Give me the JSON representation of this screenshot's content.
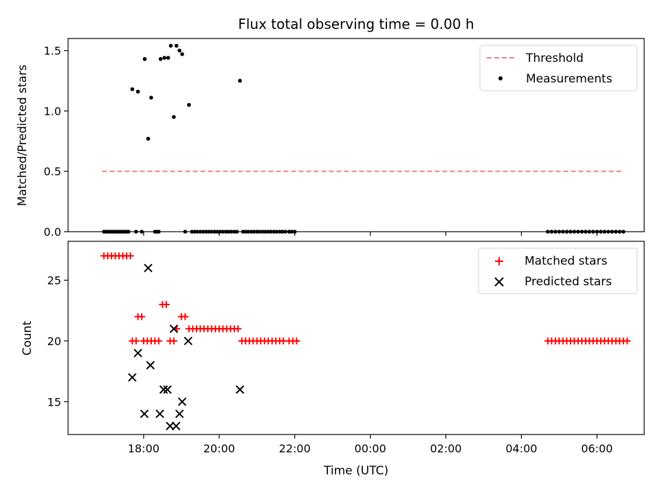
{
  "title": "Flux total observing time = 0.00 h",
  "chart_data": [
    {
      "type": "scatter",
      "panel": "top",
      "ylabel": "Matched/Predicted stars",
      "ylim": [
        0,
        1.6
      ],
      "yticks": [
        0.0,
        0.5,
        1.0,
        1.5
      ],
      "ytick_labels": [
        "0.0",
        "0.5",
        "1.0",
        "1.5"
      ],
      "legend_position": "top-right",
      "series": [
        {
          "name": "Threshold",
          "kind": "line",
          "style": "dashed",
          "color": "#f08080",
          "points": [
            [
              16.9,
              0.5
            ],
            [
              30.7,
              0.5
            ]
          ]
        },
        {
          "name": "Measurements",
          "kind": "scatter",
          "color": "#000000",
          "points": [
            [
              16.95,
              0
            ],
            [
              17.0,
              0
            ],
            [
              17.05,
              0
            ],
            [
              17.1,
              0
            ],
            [
              17.15,
              0
            ],
            [
              17.2,
              0
            ],
            [
              17.25,
              0
            ],
            [
              17.3,
              0
            ],
            [
              17.35,
              0
            ],
            [
              17.4,
              0
            ],
            [
              17.45,
              0
            ],
            [
              17.5,
              0
            ],
            [
              17.55,
              0
            ],
            [
              17.6,
              0
            ],
            [
              17.7,
              1.18
            ],
            [
              17.85,
              1.16
            ],
            [
              17.8,
              0
            ],
            [
              17.95,
              0
            ],
            [
              18.03,
              1.43
            ],
            [
              18.12,
              0.77
            ],
            [
              18.2,
              1.11
            ],
            [
              18.3,
              0
            ],
            [
              18.35,
              0
            ],
            [
              18.4,
              0
            ],
            [
              18.45,
              1.43
            ],
            [
              18.55,
              1.44
            ],
            [
              18.65,
              1.44
            ],
            [
              18.72,
              1.54
            ],
            [
              18.8,
              0.95
            ],
            [
              18.87,
              1.54
            ],
            [
              18.95,
              1.5
            ],
            [
              19.02,
              1.47
            ],
            [
              19.1,
              0
            ],
            [
              19.2,
              1.05
            ],
            [
              19.28,
              0
            ],
            [
              19.35,
              0
            ],
            [
              19.42,
              0
            ],
            [
              19.5,
              0
            ],
            [
              19.58,
              0
            ],
            [
              19.65,
              0
            ],
            [
              19.72,
              0
            ],
            [
              19.8,
              0
            ],
            [
              19.88,
              0
            ],
            [
              19.95,
              0
            ],
            [
              20.02,
              0
            ],
            [
              20.1,
              0
            ],
            [
              20.18,
              0
            ],
            [
              20.25,
              0
            ],
            [
              20.32,
              0
            ],
            [
              20.4,
              0
            ],
            [
              20.47,
              0
            ],
            [
              20.55,
              1.25
            ],
            [
              20.63,
              0
            ],
            [
              20.7,
              0
            ],
            [
              20.77,
              0
            ],
            [
              20.85,
              0
            ],
            [
              20.92,
              0
            ],
            [
              21.0,
              0
            ],
            [
              21.07,
              0
            ],
            [
              21.15,
              0
            ],
            [
              21.22,
              0
            ],
            [
              21.3,
              0
            ],
            [
              21.37,
              0
            ],
            [
              21.45,
              0
            ],
            [
              21.52,
              0
            ],
            [
              21.6,
              0
            ],
            [
              21.67,
              0
            ],
            [
              21.75,
              0
            ],
            [
              21.85,
              0
            ],
            [
              21.92,
              0
            ],
            [
              22.0,
              0
            ],
            [
              28.7,
              0
            ],
            [
              28.8,
              0
            ],
            [
              28.9,
              0
            ],
            [
              29.0,
              0
            ],
            [
              29.1,
              0
            ],
            [
              29.2,
              0
            ],
            [
              29.3,
              0
            ],
            [
              29.4,
              0
            ],
            [
              29.5,
              0
            ],
            [
              29.6,
              0
            ],
            [
              29.7,
              0
            ],
            [
              29.8,
              0
            ],
            [
              29.9,
              0
            ],
            [
              30.0,
              0
            ],
            [
              30.1,
              0
            ],
            [
              30.2,
              0
            ],
            [
              30.3,
              0
            ],
            [
              30.4,
              0
            ],
            [
              30.5,
              0
            ],
            [
              30.6,
              0
            ],
            [
              30.7,
              0
            ]
          ]
        }
      ]
    },
    {
      "type": "scatter",
      "panel": "bottom",
      "xlabel": "Time (UTC)",
      "ylabel": "Count",
      "ylim": [
        12.3,
        28.2
      ],
      "yticks": [
        15,
        20,
        25
      ],
      "ytick_labels": [
        "15",
        "20",
        "25"
      ],
      "xlim": [
        16.0,
        31.25
      ],
      "xticks": [
        18,
        20,
        22,
        24,
        26,
        28,
        30
      ],
      "xtick_labels": [
        "18:00",
        "20:00",
        "22:00",
        "00:00",
        "02:00",
        "04:00",
        "06:00"
      ],
      "legend_position": "top-right",
      "series": [
        {
          "name": "Matched stars",
          "marker": "plus",
          "color": "#ff0000",
          "points": [
            [
              16.95,
              27
            ],
            [
              17.05,
              27
            ],
            [
              17.15,
              27
            ],
            [
              17.25,
              27
            ],
            [
              17.35,
              27
            ],
            [
              17.45,
              27
            ],
            [
              17.55,
              27
            ],
            [
              17.65,
              27
            ],
            [
              17.7,
              20
            ],
            [
              17.8,
              20
            ],
            [
              17.85,
              22
            ],
            [
              17.95,
              22
            ],
            [
              18.0,
              20
            ],
            [
              18.1,
              20
            ],
            [
              18.2,
              20
            ],
            [
              18.3,
              20
            ],
            [
              18.4,
              20
            ],
            [
              18.5,
              23
            ],
            [
              18.6,
              23
            ],
            [
              18.7,
              20
            ],
            [
              18.8,
              20
            ],
            [
              18.88,
              21
            ],
            [
              19.0,
              22
            ],
            [
              19.1,
              22
            ],
            [
              19.2,
              21
            ],
            [
              19.3,
              21
            ],
            [
              19.4,
              21
            ],
            [
              19.5,
              21
            ],
            [
              19.6,
              21
            ],
            [
              19.7,
              21
            ],
            [
              19.8,
              21
            ],
            [
              19.9,
              21
            ],
            [
              20.0,
              21
            ],
            [
              20.1,
              21
            ],
            [
              20.2,
              21
            ],
            [
              20.3,
              21
            ],
            [
              20.4,
              21
            ],
            [
              20.5,
              21
            ],
            [
              20.6,
              20
            ],
            [
              20.7,
              20
            ],
            [
              20.8,
              20
            ],
            [
              20.9,
              20
            ],
            [
              21.0,
              20
            ],
            [
              21.1,
              20
            ],
            [
              21.2,
              20
            ],
            [
              21.3,
              20
            ],
            [
              21.4,
              20
            ],
            [
              21.5,
              20
            ],
            [
              21.6,
              20
            ],
            [
              21.7,
              20
            ],
            [
              21.85,
              20
            ],
            [
              21.95,
              20
            ],
            [
              22.05,
              20
            ],
            [
              28.7,
              20
            ],
            [
              28.8,
              20
            ],
            [
              28.9,
              20
            ],
            [
              29.0,
              20
            ],
            [
              29.1,
              20
            ],
            [
              29.2,
              20
            ],
            [
              29.3,
              20
            ],
            [
              29.4,
              20
            ],
            [
              29.5,
              20
            ],
            [
              29.6,
              20
            ],
            [
              29.7,
              20
            ],
            [
              29.8,
              20
            ],
            [
              29.9,
              20
            ],
            [
              30.0,
              20
            ],
            [
              30.1,
              20
            ],
            [
              30.2,
              20
            ],
            [
              30.3,
              20
            ],
            [
              30.4,
              20
            ],
            [
              30.5,
              20
            ],
            [
              30.6,
              20
            ],
            [
              30.7,
              20
            ],
            [
              30.8,
              20
            ]
          ]
        },
        {
          "name": "Predicted stars",
          "marker": "x",
          "color": "#000000",
          "points": [
            [
              17.7,
              17
            ],
            [
              17.85,
              19
            ],
            [
              18.02,
              14
            ],
            [
              18.12,
              26
            ],
            [
              18.18,
              18
            ],
            [
              18.43,
              14
            ],
            [
              18.53,
              16
            ],
            [
              18.63,
              16
            ],
            [
              18.7,
              13
            ],
            [
              18.8,
              21
            ],
            [
              18.86,
              13
            ],
            [
              18.95,
              14
            ],
            [
              19.02,
              15
            ],
            [
              19.18,
              20
            ],
            [
              20.55,
              16
            ]
          ]
        }
      ]
    }
  ]
}
